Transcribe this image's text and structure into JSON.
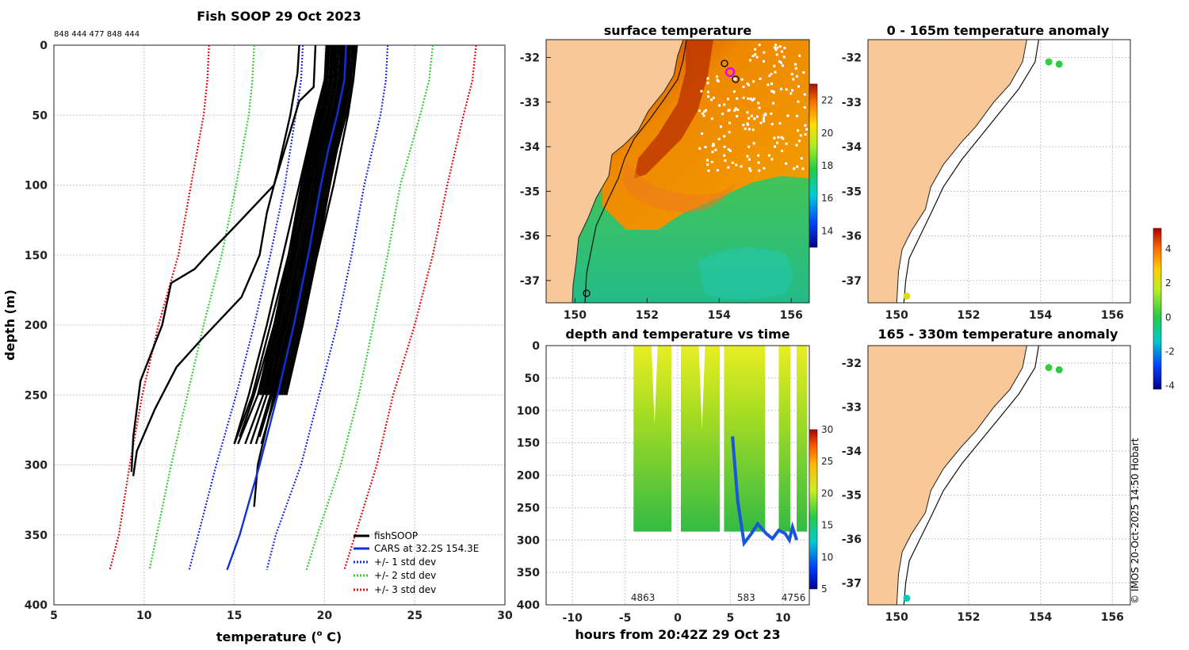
{
  "figure": {
    "copyright": "© IMOS 20-Oct-2025 14:50 Hobart"
  },
  "colors": {
    "profiles": "#000000",
    "cars": "#1030d8",
    "std1": "#1a2fd8",
    "std2": "#33cc33",
    "std3": "#dd1111",
    "land": "#f8c898"
  },
  "chart_data": [
    {
      "type": "line",
      "id": "profile-panel",
      "title": "Fish SOOP 29 Oct 2023",
      "top_label": "848 444 477 848 444",
      "xlabel": "temperature (",
      "xlabel_sup": "o",
      "xlabel_end": " C)",
      "ylabel": "depth (m)",
      "xlim": [
        5,
        30
      ],
      "ylim": [
        0,
        400
      ],
      "y_reversed": true,
      "x_ticks": [
        "5",
        "10",
        "15",
        "20",
        "25",
        "30"
      ],
      "y_ticks": [
        "0",
        "50",
        "100",
        "150",
        "200",
        "250",
        "300",
        "350",
        "400"
      ],
      "grid": true,
      "legend": {
        "position": "bottom-right",
        "items": [
          {
            "label": "fishSOOP",
            "style": "solid",
            "color": "#000000"
          },
          {
            "label": "CARS at 32.2S 154.3E",
            "style": "solid",
            "color": "#1030d8"
          },
          {
            "label": "+/- 1 std dev",
            "style": "dotted",
            "color": "#1a2fd8"
          },
          {
            "label": "+/- 2 std dev",
            "style": "dotted",
            "color": "#33cc33"
          },
          {
            "label": "+/- 3 std dev",
            "style": "dotted",
            "color": "#dd1111"
          }
        ]
      },
      "cars_mean": {
        "depth": [
          0,
          25,
          50,
          75,
          100,
          150,
          200,
          250,
          300,
          350,
          375
        ],
        "temp": [
          21.2,
          21.1,
          20.7,
          20.2,
          19.8,
          19.1,
          18.3,
          17.4,
          16.4,
          15.3,
          14.6
        ]
      },
      "std_dev_lines": [
        {
          "name": "-1 std",
          "depth": [
            0,
            25,
            50,
            100,
            150,
            200,
            250,
            300,
            350,
            375
          ],
          "temp": [
            18.8,
            18.7,
            18.4,
            17.8,
            17.0,
            16.1,
            15.1,
            14.0,
            13.0,
            12.5
          ]
        },
        {
          "name": "+1 std",
          "depth": [
            0,
            25,
            50,
            100,
            150,
            200,
            250,
            300,
            350,
            375
          ],
          "temp": [
            23.5,
            23.4,
            23.1,
            22.2,
            21.5,
            20.7,
            19.7,
            18.7,
            17.3,
            16.8
          ]
        },
        {
          "name": "-2 std",
          "depth": [
            0,
            25,
            50,
            100,
            150,
            200,
            250,
            300,
            350,
            375
          ],
          "temp": [
            16.1,
            16.0,
            15.8,
            15.1,
            14.3,
            13.3,
            12.4,
            11.5,
            10.7,
            10.3
          ]
        },
        {
          "name": "+2 std",
          "depth": [
            0,
            25,
            50,
            100,
            150,
            200,
            250,
            300,
            350,
            375
          ],
          "temp": [
            26.0,
            25.8,
            25.3,
            24.2,
            23.5,
            22.7,
            21.9,
            20.9,
            19.6,
            19.0
          ]
        },
        {
          "name": "-3 std",
          "depth": [
            0,
            25,
            50,
            100,
            150,
            200,
            250,
            300,
            350,
            375
          ],
          "temp": [
            13.6,
            13.5,
            13.3,
            12.6,
            11.9,
            10.8,
            9.9,
            9.2,
            8.6,
            8.1
          ]
        },
        {
          "name": "+3 std",
          "depth": [
            0,
            25,
            50,
            100,
            150,
            200,
            250,
            300,
            350,
            375
          ],
          "temp": [
            28.4,
            28.2,
            27.7,
            26.8,
            26.0,
            25.0,
            23.8,
            22.9,
            21.7,
            21.1
          ]
        }
      ],
      "fish_profiles": [
        {
          "depth": [
            0,
            30,
            40,
            70,
            100,
            130,
            150,
            160,
            170,
            200,
            240,
            280,
            305
          ],
          "temp": [
            19.5,
            19.4,
            18.6,
            17.9,
            17.2,
            15.0,
            13.5,
            12.8,
            11.5,
            11.0,
            9.8,
            9.4,
            9.3
          ]
        },
        {
          "depth": [
            0,
            20,
            50,
            90,
            120,
            150,
            180,
            210,
            230,
            260,
            290,
            308
          ],
          "temp": [
            18.6,
            18.5,
            18.1,
            17.4,
            16.8,
            16.4,
            15.4,
            13.2,
            11.8,
            10.6,
            9.6,
            9.4
          ]
        },
        {
          "depth": [
            0,
            25,
            50,
            100,
            150,
            200,
            250,
            285
          ],
          "temp": [
            21.4,
            21.2,
            20.9,
            19.9,
            18.9,
            17.8,
            16.8,
            15.9
          ]
        },
        {
          "depth": [
            0,
            25,
            50,
            100,
            150,
            200,
            250,
            285
          ],
          "temp": [
            20.8,
            20.6,
            20.2,
            19.2,
            18.3,
            17.4,
            16.3,
            15.2
          ]
        },
        {
          "depth": [
            0,
            25,
            50,
            100,
            150,
            200,
            250,
            285
          ],
          "temp": [
            21.6,
            21.4,
            21.0,
            20.3,
            19.4,
            18.2,
            17.0,
            16.2
          ]
        },
        {
          "depth": [
            0,
            25,
            50,
            100,
            150,
            200,
            250,
            285
          ],
          "temp": [
            20.5,
            20.3,
            19.8,
            18.9,
            18.0,
            17.0,
            16.0,
            15.0
          ]
        },
        {
          "depth": [
            0,
            25,
            50,
            100,
            150,
            200,
            250,
            285
          ],
          "temp": [
            21.0,
            20.9,
            20.5,
            19.6,
            18.7,
            17.7,
            16.6,
            15.6
          ]
        },
        {
          "depth": [
            0,
            25,
            50,
            100,
            150,
            200,
            250,
            285
          ],
          "temp": [
            21.8,
            21.6,
            21.3,
            20.5,
            19.6,
            18.5,
            17.3,
            16.5
          ]
        },
        {
          "depth": [
            0,
            25,
            50,
            100,
            150,
            200,
            250,
            285
          ],
          "temp": [
            20.2,
            20.0,
            19.5,
            18.6,
            17.7,
            16.8,
            15.8,
            15.0
          ]
        },
        {
          "depth": [
            0,
            30,
            60,
            100,
            150,
            200,
            250,
            300,
            330
          ],
          "temp": [
            21.1,
            21.0,
            20.6,
            19.9,
            19.0,
            18.0,
            17.2,
            16.3,
            16.1
          ]
        },
        {
          "depth": [
            0,
            25,
            50,
            100,
            150,
            200,
            250,
            280
          ],
          "temp": [
            21.3,
            21.2,
            20.8,
            20.0,
            19.2,
            18.2,
            17.1,
            16.4
          ]
        },
        {
          "depth": [
            0,
            25,
            50,
            100,
            150,
            200,
            250,
            280
          ],
          "temp": [
            20.6,
            20.4,
            20.0,
            19.1,
            18.2,
            17.2,
            16.1,
            15.3
          ]
        }
      ]
    },
    {
      "type": "heatmap",
      "id": "surface-map",
      "title": "surface temperature",
      "xlim": [
        149.2,
        156.5
      ],
      "ylim": [
        -37.5,
        -31.6
      ],
      "x_ticks": [
        "150",
        "152",
        "154",
        "156"
      ],
      "y_ticks": [
        "-32",
        "-33",
        "-34",
        "-35",
        "-36",
        "-37"
      ],
      "colorbar": {
        "range": [
          13,
          23
        ],
        "ticks": [
          "14",
          "16",
          "18",
          "20",
          "22"
        ]
      }
    },
    {
      "type": "scatter",
      "id": "depth-time",
      "title": "depth and temperature vs time",
      "xlabel": "hours from 20:42Z 29 Oct 23",
      "xlim": [
        -12.5,
        12.5
      ],
      "ylim": [
        0,
        400
      ],
      "y_reversed": true,
      "x_ticks": [
        "-10",
        "-5",
        "0",
        "5",
        "10"
      ],
      "y_ticks": [
        "0",
        "50",
        "100",
        "150",
        "200",
        "250",
        "300",
        "350",
        "400"
      ],
      "drop_labels": [
        {
          "x": -3.3,
          "text": "4863"
        },
        {
          "x": 6.5,
          "text": "583"
        },
        {
          "x": 11.0,
          "text": "4756"
        }
      ],
      "colorbar": {
        "range": [
          5,
          30
        ],
        "ticks": [
          "5",
          "10",
          "15",
          "20",
          "25",
          "30"
        ]
      },
      "segments": [
        [
          -4.2,
          -0.6
        ],
        [
          0.3,
          4.0
        ],
        [
          4.4,
          8.3
        ],
        [
          9.6,
          10.7
        ],
        [
          11.3,
          12.3
        ]
      ]
    },
    {
      "type": "scatter",
      "id": "anomaly-upper",
      "title": "0 - 165m temperature anomaly",
      "xlim": [
        149.2,
        156.5
      ],
      "ylim": [
        -37.5,
        -31.6
      ],
      "x_ticks": [
        "150",
        "152",
        "154",
        "156"
      ],
      "y_ticks": [
        "-32",
        "-33",
        "-34",
        "-35",
        "-36",
        "-37"
      ],
      "points": [
        {
          "lon": 154.23,
          "lat": -32.1,
          "anomaly": 0.2
        },
        {
          "lon": 154.52,
          "lat": -32.15,
          "anomaly": 0.1
        },
        {
          "lon": 150.28,
          "lat": -37.35,
          "anomaly": 2.3
        }
      ]
    },
    {
      "type": "scatter",
      "id": "anomaly-lower",
      "title": "165 - 330m temperature anomaly",
      "xlim": [
        149.2,
        156.5
      ],
      "ylim": [
        -37.5,
        -31.6
      ],
      "x_ticks": [
        "150",
        "152",
        "154",
        "156"
      ],
      "y_ticks": [
        "-32",
        "-33",
        "-34",
        "-35",
        "-36",
        "-37"
      ],
      "points": [
        {
          "lon": 154.23,
          "lat": -32.1,
          "anomaly": 0.2
        },
        {
          "lon": 154.52,
          "lat": -32.15,
          "anomaly": 0.1
        },
        {
          "lon": 150.28,
          "lat": -37.35,
          "anomaly": -1.2
        }
      ]
    },
    {
      "type": "heatmap",
      "id": "anomaly-colorbar",
      "colorbar": {
        "range": [
          -4.2,
          5.2
        ],
        "ticks": [
          "-4",
          "-2",
          "0",
          "2",
          "4"
        ]
      }
    }
  ]
}
